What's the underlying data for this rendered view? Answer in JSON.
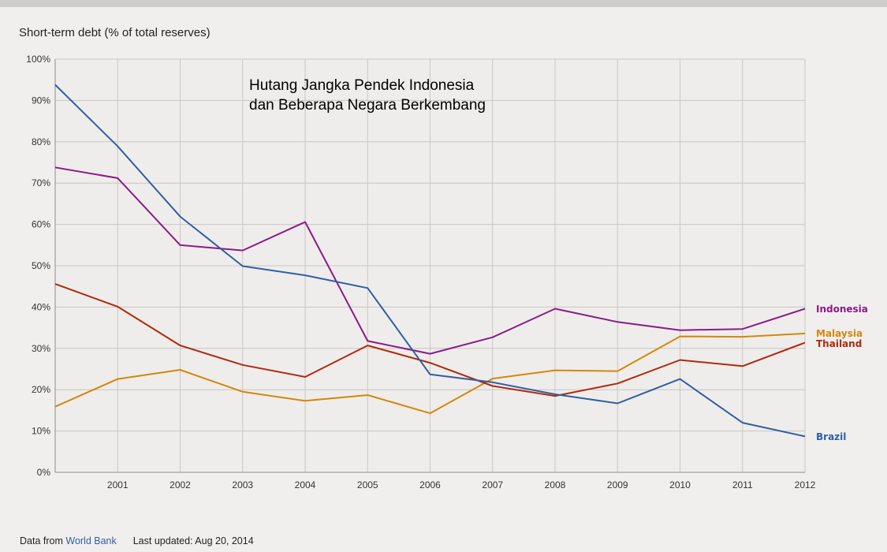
{
  "chart_data": {
    "type": "line",
    "title": "Hutang Jangka Pendek Indonesia\ndan Beberapa Negara Berkembang",
    "title_lines": [
      "Hutang Jangka Pendek Indonesia",
      "dan Beberapa Negara Berkembang"
    ],
    "ylabel": "Short-term debt (% of total reserves)",
    "xlabel": "",
    "x": [
      2000,
      2001,
      2002,
      2003,
      2004,
      2005,
      2006,
      2007,
      2008,
      2009,
      2010,
      2011,
      2012
    ],
    "x_tick_labels": [
      "2001",
      "2002",
      "2003",
      "2004",
      "2005",
      "2006",
      "2007",
      "2008",
      "2009",
      "2010",
      "2011",
      "2012"
    ],
    "ylim": [
      0,
      100
    ],
    "y_tick_labels": [
      "0%",
      "10%",
      "20%",
      "30%",
      "40%",
      "50%",
      "60%",
      "70%",
      "80%",
      "90%",
      "100%"
    ],
    "grid": true,
    "legend": "right-end labels",
    "series": [
      {
        "name": "Indonesia",
        "color": "#8b1a89",
        "values": [
          73.8,
          71.2,
          55.0,
          53.7,
          60.6,
          31.8,
          28.7,
          32.7,
          39.6,
          36.4,
          34.4,
          34.7,
          39.6
        ]
      },
      {
        "name": "Malaysia",
        "color": "#d4870a",
        "values": [
          15.9,
          22.6,
          24.8,
          19.5,
          17.3,
          18.7,
          14.3,
          22.7,
          24.7,
          24.5,
          32.9,
          32.8,
          33.6
        ]
      },
      {
        "name": "Thailand",
        "color": "#b02a0d",
        "values": [
          45.6,
          40.1,
          30.7,
          26.0,
          23.1,
          30.7,
          26.5,
          20.9,
          18.5,
          21.5,
          27.2,
          25.7,
          31.4
        ]
      },
      {
        "name": "Brazil",
        "color": "#2f5fa3",
        "values": [
          93.8,
          78.9,
          61.9,
          49.9,
          47.7,
          44.6,
          23.7,
          21.8,
          18.9,
          16.7,
          22.6,
          12.0,
          8.7
        ]
      }
    ]
  },
  "footer": {
    "prefix": "Data from",
    "source_link": "World Bank",
    "updated": "Last updated: Aug 20, 2014"
  }
}
